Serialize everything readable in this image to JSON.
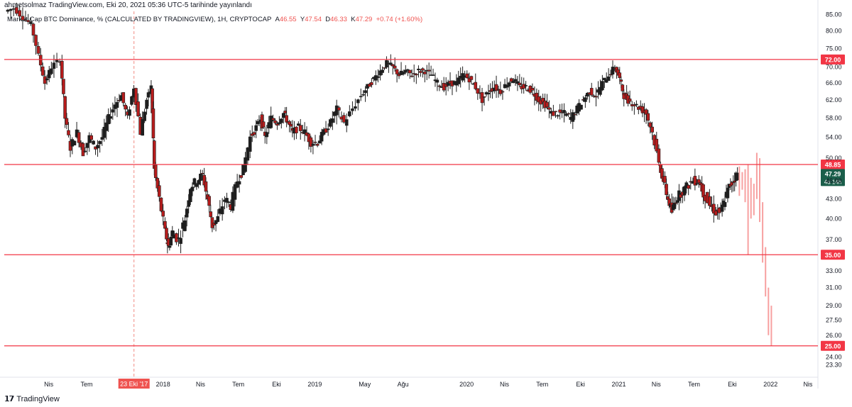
{
  "header": {
    "author_line": "ahmetsolmaz TradingView.com, Eki 20, 2021 05:36 UTC-5 tarihinde yayınlandı"
  },
  "legend": {
    "symbol": "Market Cap BTC Dominance, % (CALCULATED BY TRADINGVIEW), 1H, CRYPTOCAP",
    "o_label": "A",
    "o": "46.55",
    "h_label": "Y",
    "h": "47.54",
    "l_label": "D",
    "l": "46.33",
    "c_label": "K",
    "c": "47.29",
    "change": "+0.74 (+1.60%)"
  },
  "footer": {
    "brand": "TradingView"
  },
  "colors": {
    "up": "#26a69a",
    "up_dark": "#1b3b33",
    "down": "#ef5350",
    "down_dark": "#b71c1c",
    "level_line": "#f23645",
    "projection": "#f7a0a0",
    "axis_text": "#131722"
  },
  "chart_data": {
    "type": "candlestick",
    "y_scale": "log",
    "ylim": [
      22.5,
      86
    ],
    "xlim": [
      "2016-12-15",
      "2022-04-25"
    ],
    "y_ticks": [
      "85.00",
      "80.00",
      "75.00",
      "70.00",
      "66.00",
      "62.00",
      "58.00",
      "54.00",
      "50.00",
      "46.00",
      "43.00",
      "40.00",
      "37.00",
      "33.00",
      "31.00",
      "29.00",
      "27.50",
      "26.00",
      "24.00",
      "23.30"
    ],
    "x_ticks": [
      {
        "label": "Nis",
        "date": "2017-04-01"
      },
      {
        "label": "Tem",
        "date": "2017-07-01"
      },
      {
        "label": "2018",
        "date": "2018-01-01"
      },
      {
        "label": "Nis",
        "date": "2018-04-01"
      },
      {
        "label": "Tem",
        "date": "2018-07-01"
      },
      {
        "label": "Eki",
        "date": "2018-10-01"
      },
      {
        "label": "2019",
        "date": "2019-01-01"
      },
      {
        "label": "May",
        "date": "2019-05-01"
      },
      {
        "label": "Ağu",
        "date": "2019-08-01"
      },
      {
        "label": "2020",
        "date": "2020-01-01"
      },
      {
        "label": "Nis",
        "date": "2020-04-01"
      },
      {
        "label": "Tem",
        "date": "2020-07-01"
      },
      {
        "label": "Eki",
        "date": "2020-10-01"
      },
      {
        "label": "2021",
        "date": "2021-01-01"
      },
      {
        "label": "Nis",
        "date": "2021-04-01"
      },
      {
        "label": "Tem",
        "date": "2021-07-01"
      },
      {
        "label": "Eki",
        "date": "2021-10-01"
      },
      {
        "label": "2022",
        "date": "2022-01-01"
      },
      {
        "label": "Nis",
        "date": "2022-04-01"
      }
    ],
    "crosshair": {
      "date": "2017-10-23",
      "label": "23 Eki '17"
    },
    "levels": [
      {
        "value": 72.0,
        "label": "72.00"
      },
      {
        "value": 48.85,
        "label": "48.85"
      },
      {
        "value": 35.0,
        "label": "35.00"
      },
      {
        "value": 25.0,
        "label": "25.00"
      }
    ],
    "last_price": {
      "value": 47.29,
      "label": "47.29",
      "countdown": "4d 14h"
    },
    "weekly_close_path": [
      [
        "2016-12-20",
        86
      ],
      [
        "2017-01-10",
        87
      ],
      [
        "2017-02-01",
        84
      ],
      [
        "2017-02-20",
        82
      ],
      [
        "2017-03-10",
        73
      ],
      [
        "2017-03-25",
        66
      ],
      [
        "2017-04-10",
        70
      ],
      [
        "2017-05-01",
        72
      ],
      [
        "2017-05-12",
        58
      ],
      [
        "2017-05-25",
        52
      ],
      [
        "2017-06-10",
        55
      ],
      [
        "2017-06-25",
        51
      ],
      [
        "2017-07-10",
        54
      ],
      [
        "2017-07-25",
        52
      ],
      [
        "2017-08-10",
        54
      ],
      [
        "2017-08-25",
        58
      ],
      [
        "2017-09-10",
        61
      ],
      [
        "2017-09-25",
        63
      ],
      [
        "2017-10-10",
        58
      ],
      [
        "2017-10-25",
        65
      ],
      [
        "2017-11-10",
        55
      ],
      [
        "2017-11-25",
        62
      ],
      [
        "2017-12-05",
        65
      ],
      [
        "2017-12-12",
        48
      ],
      [
        "2017-12-25",
        43
      ],
      [
        "2018-01-08",
        38
      ],
      [
        "2018-01-15",
        36
      ],
      [
        "2018-01-25",
        38
      ],
      [
        "2018-02-10",
        37
      ],
      [
        "2018-02-25",
        40
      ],
      [
        "2018-03-10",
        45
      ],
      [
        "2018-03-25",
        46
      ],
      [
        "2018-04-08",
        47
      ],
      [
        "2018-04-20",
        43
      ],
      [
        "2018-05-01",
        39
      ],
      [
        "2018-05-15",
        40
      ],
      [
        "2018-06-01",
        43
      ],
      [
        "2018-06-15",
        42
      ],
      [
        "2018-07-01",
        46
      ],
      [
        "2018-07-15",
        48
      ],
      [
        "2018-08-01",
        54
      ],
      [
        "2018-08-15",
        56
      ],
      [
        "2018-08-25",
        58
      ],
      [
        "2018-09-05",
        54
      ],
      [
        "2018-09-20",
        58
      ],
      [
        "2018-10-05",
        57
      ],
      [
        "2018-10-20",
        59
      ],
      [
        "2018-10-30",
        57
      ],
      [
        "2018-11-10",
        55
      ],
      [
        "2018-11-25",
        56
      ],
      [
        "2018-12-10",
        55
      ],
      [
        "2018-12-25",
        53
      ],
      [
        "2019-01-10",
        53
      ],
      [
        "2019-01-25",
        55
      ],
      [
        "2019-02-10",
        57
      ],
      [
        "2019-02-25",
        60
      ],
      [
        "2019-03-15",
        57
      ],
      [
        "2019-04-05",
        60
      ],
      [
        "2019-04-25",
        63
      ],
      [
        "2019-05-10",
        65
      ],
      [
        "2019-05-25",
        67
      ],
      [
        "2019-06-10",
        69
      ],
      [
        "2019-06-25",
        71
      ],
      [
        "2019-07-10",
        70
      ],
      [
        "2019-07-25",
        68
      ],
      [
        "2019-08-10",
        69
      ],
      [
        "2019-08-25",
        68
      ],
      [
        "2019-09-10",
        69
      ],
      [
        "2019-09-25",
        69
      ],
      [
        "2019-10-10",
        68
      ],
      [
        "2019-10-25",
        66
      ],
      [
        "2019-11-10",
        65
      ],
      [
        "2019-11-25",
        66
      ],
      [
        "2019-12-10",
        66
      ],
      [
        "2019-12-25",
        68
      ],
      [
        "2020-01-10",
        67
      ],
      [
        "2020-01-25",
        65
      ],
      [
        "2020-02-10",
        62
      ],
      [
        "2020-02-25",
        64
      ],
      [
        "2020-03-10",
        65
      ],
      [
        "2020-03-25",
        64
      ],
      [
        "2020-04-10",
        66
      ],
      [
        "2020-04-25",
        67
      ],
      [
        "2020-05-10",
        65
      ],
      [
        "2020-05-25",
        65
      ],
      [
        "2020-06-10",
        64
      ],
      [
        "2020-06-25",
        62
      ],
      [
        "2020-07-10",
        61
      ],
      [
        "2020-07-25",
        59
      ],
      [
        "2020-08-10",
        59
      ],
      [
        "2020-08-25",
        59
      ],
      [
        "2020-09-10",
        58
      ],
      [
        "2020-09-25",
        60
      ],
      [
        "2020-10-10",
        62
      ],
      [
        "2020-10-25",
        64
      ],
      [
        "2020-11-10",
        63
      ],
      [
        "2020-11-25",
        66
      ],
      [
        "2020-12-10",
        68
      ],
      [
        "2020-12-25",
        70
      ],
      [
        "2021-01-05",
        67
      ],
      [
        "2021-01-15",
        63
      ],
      [
        "2021-01-25",
        62
      ],
      [
        "2021-02-10",
        61
      ],
      [
        "2021-02-25",
        60
      ],
      [
        "2021-03-10",
        59
      ],
      [
        "2021-03-25",
        55
      ],
      [
        "2021-04-10",
        49
      ],
      [
        "2021-04-20",
        46
      ],
      [
        "2021-05-01",
        43
      ],
      [
        "2021-05-10",
        41
      ],
      [
        "2021-05-20",
        43
      ],
      [
        "2021-06-01",
        44
      ],
      [
        "2021-06-15",
        45
      ],
      [
        "2021-07-01",
        46
      ],
      [
        "2021-07-15",
        46
      ],
      [
        "2021-07-25",
        44
      ],
      [
        "2021-08-10",
        42
      ],
      [
        "2021-08-25",
        41
      ],
      [
        "2021-09-05",
        41
      ],
      [
        "2021-09-15",
        43
      ],
      [
        "2021-09-25",
        45
      ],
      [
        "2021-10-05",
        46
      ],
      [
        "2021-10-15",
        47.29
      ]
    ],
    "projection_bars": [
      {
        "date": "2021-10-18",
        "low": 43.5,
        "high": 48.5
      },
      {
        "date": "2021-10-25",
        "low": 44.5,
        "high": 47.5
      },
      {
        "date": "2021-11-01",
        "low": 42.5,
        "high": 48.0
      },
      {
        "date": "2021-11-08",
        "low": 35.0,
        "high": 48.85
      },
      {
        "date": "2021-11-15",
        "low": 40.0,
        "high": 46.5
      },
      {
        "date": "2021-11-22",
        "low": 40.5,
        "high": 45.5
      },
      {
        "date": "2021-11-29",
        "low": 43.0,
        "high": 51.0
      },
      {
        "date": "2021-12-06",
        "low": 39.5,
        "high": 50.0
      },
      {
        "date": "2021-12-13",
        "low": 34.0,
        "high": 42.5
      },
      {
        "date": "2021-12-20",
        "low": 30.0,
        "high": 36.0
      },
      {
        "date": "2021-12-27",
        "low": 26.0,
        "high": 31.0
      },
      {
        "date": "2022-01-03",
        "low": 25.0,
        "high": 29.0
      }
    ]
  }
}
